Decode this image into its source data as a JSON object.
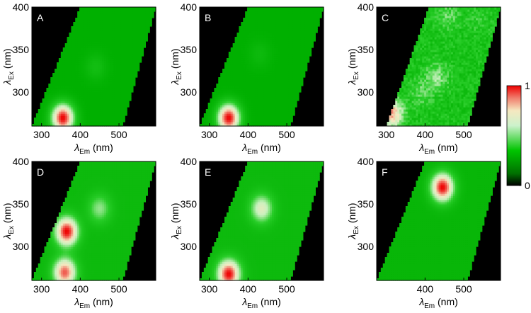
{
  "figure": {
    "colorbar": {
      "max_label": "1",
      "min_label": "0"
    }
  },
  "chart_data": [
    {
      "type": "heatmap",
      "panel_label": "A",
      "xlabel_sym": "λ",
      "xlabel_sub": "Em",
      "xlabel_unit": " (nm)",
      "ylabel_sym": "λ",
      "ylabel_sub": "Ex",
      "ylabel_unit": " (nm)",
      "xlim": [
        275,
        595
      ],
      "ylim": [
        260,
        400
      ],
      "xticks": [
        300,
        400,
        500
      ],
      "yticks": [
        300,
        350,
        400
      ],
      "valid_region": {
        "edge_left_at_ymin": 275,
        "edge_left_at_ymax": 400,
        "edge_right_at_ymin": 510,
        "edge_right_at_ymax": 595
      },
      "background": 0.35,
      "peaks": [
        {
          "em": 355,
          "ex": 270,
          "intensity": 1.0
        },
        {
          "em": 440,
          "ex": 330,
          "intensity": 0.42
        }
      ]
    },
    {
      "type": "heatmap",
      "panel_label": "B",
      "xlabel_sym": "λ",
      "xlabel_sub": "Em",
      "xlabel_unit": " (nm)",
      "ylabel_sym": "λ",
      "ylabel_sub": "Ex",
      "ylabel_unit": " (nm)",
      "xlim": [
        275,
        595
      ],
      "ylim": [
        260,
        400
      ],
      "xticks": [
        300,
        400,
        500
      ],
      "yticks": [
        300,
        350,
        400
      ],
      "valid_region": {
        "edge_left_at_ymin": 275,
        "edge_left_at_ymax": 400,
        "edge_right_at_ymin": 510,
        "edge_right_at_ymax": 595
      },
      "background": 0.35,
      "peaks": [
        {
          "em": 350,
          "ex": 270,
          "intensity": 1.0
        },
        {
          "em": 430,
          "ex": 345,
          "intensity": 0.4
        }
      ]
    },
    {
      "type": "heatmap",
      "panel_label": "C",
      "xlabel_sym": "λ",
      "xlabel_sub": "Em",
      "xlabel_unit": " (nm)",
      "ylabel_sym": "λ",
      "ylabel_sub": "Ex",
      "ylabel_unit": " (nm)",
      "xlim": [
        275,
        595
      ],
      "ylim": [
        260,
        400
      ],
      "xticks": [
        300,
        400,
        500
      ],
      "yticks": [
        300,
        350,
        400
      ],
      "valid_region": {
        "edge_left_at_ymin": 300,
        "edge_left_at_ymax": 410,
        "edge_right_at_ymin": 510,
        "edge_right_at_ymax": 595
      },
      "background": 0.45,
      "noisy": true,
      "peaks": [
        {
          "em": 315,
          "ex": 275,
          "intensity": 0.85
        },
        {
          "em": 430,
          "ex": 318,
          "intensity": 0.6
        },
        {
          "em": 460,
          "ex": 390,
          "intensity": 0.55
        },
        {
          "em": 540,
          "ex": 385,
          "intensity": 0.5
        },
        {
          "em": 390,
          "ex": 300,
          "intensity": 0.55
        }
      ]
    },
    {
      "type": "heatmap",
      "panel_label": "D",
      "xlabel_sym": "λ",
      "xlabel_sub": "Em",
      "xlabel_unit": " (nm)",
      "ylabel_sym": "λ",
      "ylabel_sub": "Ex",
      "ylabel_unit": " (nm)",
      "xlim": [
        275,
        595
      ],
      "ylim": [
        260,
        400
      ],
      "xticks": [
        300,
        400,
        500
      ],
      "yticks": [
        300,
        350,
        400
      ],
      "valid_region": {
        "edge_left_at_ymin": 275,
        "edge_left_at_ymax": 400,
        "edge_right_at_ymin": 510,
        "edge_right_at_ymax": 595
      },
      "background": 0.4,
      "peaks": [
        {
          "em": 365,
          "ex": 318,
          "intensity": 1.0
        },
        {
          "em": 360,
          "ex": 270,
          "intensity": 0.92
        },
        {
          "em": 450,
          "ex": 345,
          "intensity": 0.6
        }
      ]
    },
    {
      "type": "heatmap",
      "panel_label": "E",
      "xlabel_sym": "λ",
      "xlabel_sub": "Em",
      "xlabel_unit": " (nm)",
      "ylabel_sym": "λ",
      "ylabel_sub": "Ex",
      "ylabel_unit": " (nm)",
      "xlim": [
        275,
        595
      ],
      "ylim": [
        260,
        400
      ],
      "xticks": [
        300,
        400,
        500
      ],
      "yticks": [
        300,
        350,
        400
      ],
      "valid_region": {
        "edge_left_at_ymin": 275,
        "edge_left_at_ymax": 400,
        "edge_right_at_ymin": 510,
        "edge_right_at_ymax": 595
      },
      "background": 0.4,
      "peaks": [
        {
          "em": 350,
          "ex": 268,
          "intensity": 1.0
        },
        {
          "em": 435,
          "ex": 345,
          "intensity": 0.72
        }
      ]
    },
    {
      "type": "heatmap",
      "panel_label": "F",
      "xlabel_sym": "λ",
      "xlabel_sub": "Em",
      "xlabel_unit": " (nm)",
      "ylabel_sym": "λ",
      "ylabel_sub": "Ex",
      "ylabel_unit": " (nm)",
      "xlim": [
        275,
        595
      ],
      "ylim": [
        260,
        400
      ],
      "xticks": [
        400,
        500
      ],
      "yticks": [
        300,
        350,
        400
      ],
      "valid_region": {
        "edge_left_at_ymin": 275,
        "edge_left_at_ymax": 400,
        "edge_right_at_ymin": 510,
        "edge_right_at_ymax": 595
      },
      "background": 0.38,
      "peaks": [
        {
          "em": 445,
          "ex": 370,
          "intensity": 1.0
        }
      ]
    }
  ]
}
